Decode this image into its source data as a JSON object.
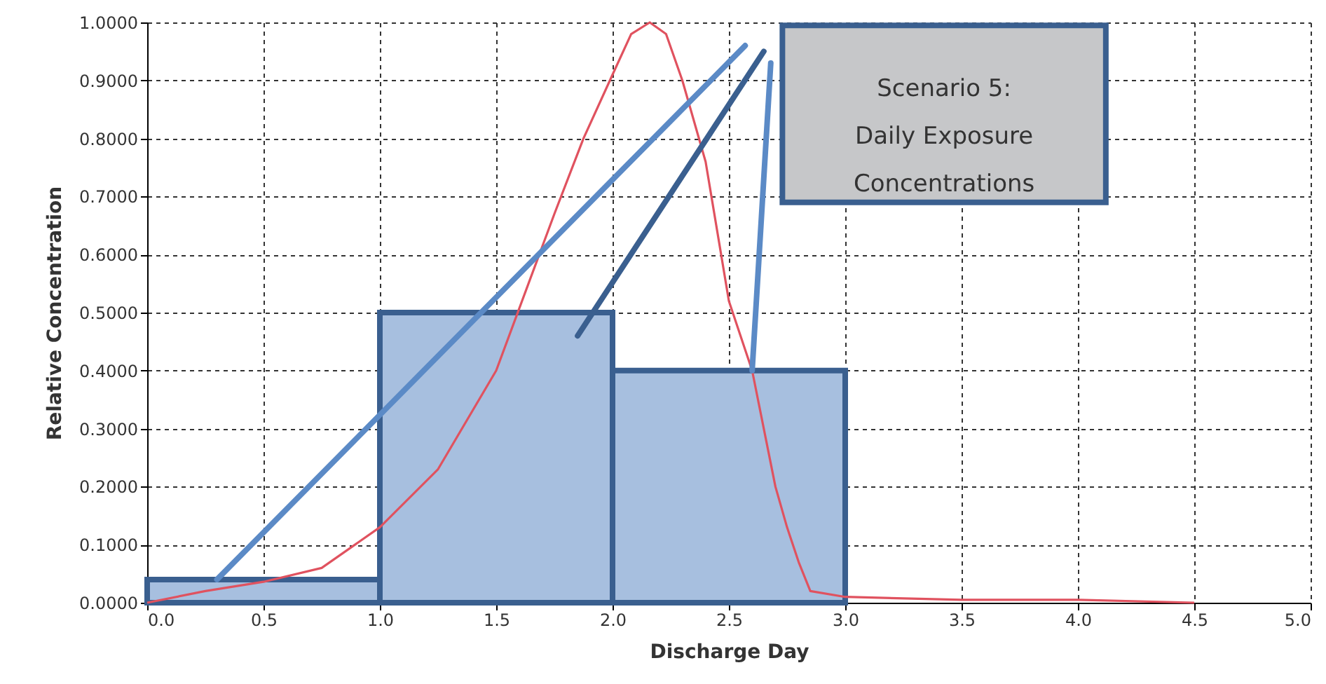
{
  "chart_data": {
    "type": "histogram",
    "xlabel": "Discharge Day",
    "ylabel": "Relative Concentration",
    "bins": [
      0,
      1,
      2,
      3
    ],
    "values": [
      0.04,
      0.5,
      0.4
    ],
    "color": "#a7bfdf",
    "series": [
      {
        "type": "line",
        "color": "#e0525f",
        "marker": "none",
        "line_style": "solid",
        "x": [
          0,
          0.25,
          0.5,
          0.75,
          1.0,
          1.25,
          1.5,
          1.75,
          1.875,
          2.0,
          2.08,
          2.16,
          2.23,
          2.3,
          2.4,
          2.5,
          2.6,
          2.7,
          2.75,
          2.8,
          2.85,
          3.0,
          3.5,
          4.0,
          4.5
        ],
        "values": [
          0.0,
          0.02,
          0.036,
          0.06,
          0.13,
          0.23,
          0.4,
          0.67,
          0.8,
          0.91,
          0.98,
          1.0,
          0.98,
          0.9,
          0.76,
          0.52,
          0.4,
          0.2,
          0.13,
          0.07,
          0.02,
          0.01,
          0.005,
          0.005,
          0.0
        ]
      }
    ],
    "xlim": [
      0,
      5
    ],
    "ylim": [
      0,
      1
    ],
    "xticks": [
      {
        "value": 0,
        "label": "0.0"
      },
      0.5,
      {
        "value": 1,
        "label": "1.0"
      },
      1.5,
      {
        "value": 2,
        "label": "2.0"
      },
      2.5,
      {
        "value": 3,
        "label": "3.0"
      },
      3.5,
      {
        "value": 4,
        "label": "4.0"
      },
      4.5,
      {
        "value": 5,
        "label": "5.0"
      }
    ],
    "yticks": [
      {
        "value": 0,
        "label": "0.0000"
      },
      {
        "value": 0.1,
        "label": "0.1000"
      },
      {
        "value": 0.2,
        "label": "0.2000"
      },
      {
        "value": 0.3,
        "label": "0.3000"
      },
      {
        "value": 0.4,
        "label": "0.4000"
      },
      {
        "value": 0.5,
        "label": "0.5000"
      },
      {
        "value": 0.6,
        "label": "0.6000"
      },
      {
        "value": 0.7,
        "label": "0.7000"
      },
      {
        "value": 0.8,
        "label": "0.8000"
      },
      {
        "value": 0.9,
        "label": "0.9000"
      },
      {
        "value": 1,
        "label": "1.0000"
      }
    ],
    "grid": true,
    "annotations": [
      "Scenario 5:\nDaily Exposure\nConcentrations"
    ]
  }
}
